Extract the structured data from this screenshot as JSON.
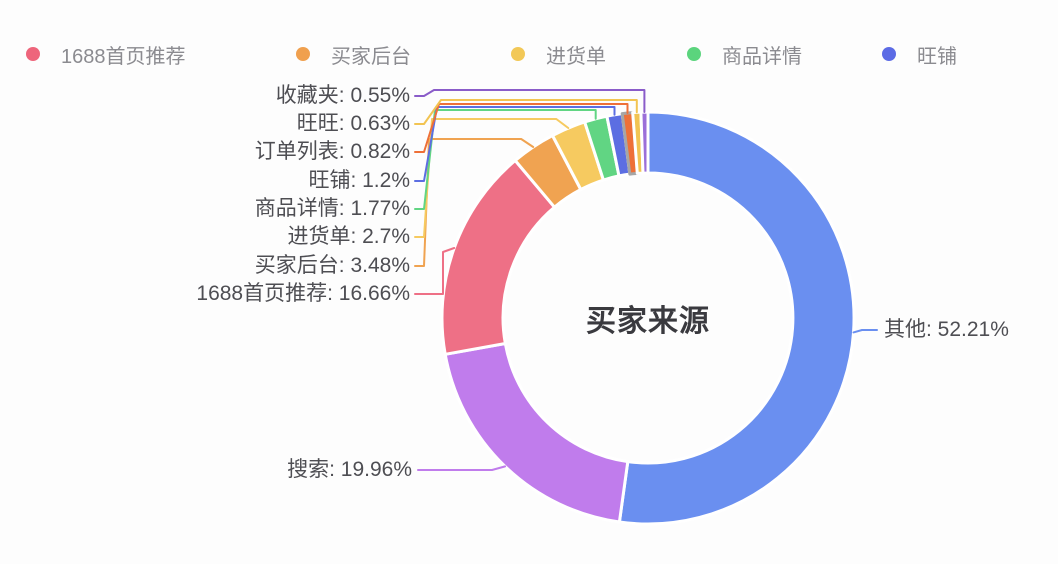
{
  "chart_data": {
    "type": "pie",
    "variant": "donut",
    "title": "买家来源",
    "unit": "%",
    "legend": {
      "position": "top",
      "items": [
        {
          "label": "1688首页推荐",
          "color": "#ee657b"
        },
        {
          "label": "买家后台",
          "color": "#f0a04e"
        },
        {
          "label": "进货单",
          "color": "#f2c857"
        },
        {
          "label": "商品详情",
          "color": "#5bd47d"
        },
        {
          "label": "旺铺",
          "color": "#5c6be5"
        }
      ]
    },
    "slices": [
      {
        "name": "其他",
        "value": 52.21,
        "label": "其他: 52.21%",
        "color": "#6a8ff0"
      },
      {
        "name": "搜索",
        "value": 19.96,
        "label": "搜索: 19.96%",
        "color": "#c07cec"
      },
      {
        "name": "1688首页推荐",
        "value": 16.66,
        "label": "1688首页推荐: 16.66%",
        "color": "#ee7086"
      },
      {
        "name": "买家后台",
        "value": 3.48,
        "label": "买家后台: 3.48%",
        "color": "#f0a351"
      },
      {
        "name": "进货单",
        "value": 2.7,
        "label": "进货单: 2.7%",
        "color": "#f6ca60"
      },
      {
        "name": "商品详情",
        "value": 1.77,
        "label": "商品详情: 1.77%",
        "color": "#61d583"
      },
      {
        "name": "旺铺",
        "value": 1.2,
        "label": "旺铺: 1.2%",
        "color": "#5c6ee2"
      },
      {
        "name": "订单列表",
        "value": 0.82,
        "label": "订单列表: 0.82%",
        "color": "#ee7038",
        "border_color": "#a6a6a6",
        "selected": true
      },
      {
        "name": "旺旺",
        "value": 0.63,
        "label": "旺旺: 0.63%",
        "color": "#f2c452"
      },
      {
        "name": "收藏夹",
        "value": 0.55,
        "label": "收藏夹: 0.55%",
        "color": "#9b6fd9",
        "line_color": "#8a5cc9"
      }
    ]
  }
}
